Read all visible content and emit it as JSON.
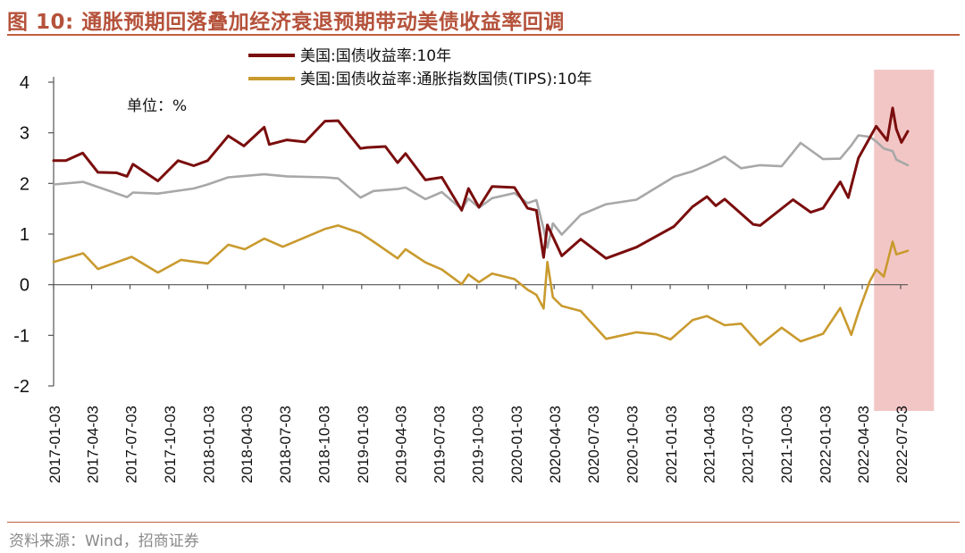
{
  "header": {
    "title": "图 10:  通胀预期回落叠加经济衰退预期带动美债收益率回调"
  },
  "footer": {
    "source": "资料来源：Wind，招商证券"
  },
  "chart_data": {
    "type": "line",
    "unit_label": "单位：%",
    "ylim": [
      -2,
      4
    ],
    "yticks": [
      4,
      3,
      2,
      1,
      0,
      -1,
      -2
    ],
    "xlim": [
      "2017-01-03",
      "2022-07-20"
    ],
    "xticks": [
      "2017-01-03",
      "2017-04-03",
      "2017-07-03",
      "2017-10-03",
      "2018-01-03",
      "2018-04-03",
      "2018-07-03",
      "2018-10-03",
      "2019-01-03",
      "2019-04-03",
      "2019-07-03",
      "2019-10-03",
      "2020-01-03",
      "2020-04-03",
      "2020-07-03",
      "2020-10-03",
      "2021-01-03",
      "2021-04-03",
      "2021-07-03",
      "2021-10-03",
      "2022-01-03",
      "2022-04-03",
      "2022-07-03"
    ],
    "grid": false,
    "legend_position": "top-center",
    "highlight_region": {
      "x_start": "2022-05-01",
      "x_end": "2022-09-20",
      "color": "#f3c6c6"
    },
    "series": [
      {
        "name": "美国:国债收益率:10年",
        "color": "#7a0d0d",
        "points": [
          [
            "2017-01-03",
            2.45
          ],
          [
            "2017-02-01",
            2.45
          ],
          [
            "2017-03-13",
            2.6
          ],
          [
            "2017-04-18",
            2.22
          ],
          [
            "2017-06-01",
            2.21
          ],
          [
            "2017-06-26",
            2.14
          ],
          [
            "2017-07-10",
            2.38
          ],
          [
            "2017-09-07",
            2.05
          ],
          [
            "2017-10-25",
            2.45
          ],
          [
            "2017-12-01",
            2.35
          ],
          [
            "2018-01-03",
            2.45
          ],
          [
            "2018-02-21",
            2.94
          ],
          [
            "2018-03-30",
            2.74
          ],
          [
            "2018-05-17",
            3.11
          ],
          [
            "2018-05-29",
            2.77
          ],
          [
            "2018-07-10",
            2.86
          ],
          [
            "2018-08-22",
            2.82
          ],
          [
            "2018-10-08",
            3.23
          ],
          [
            "2018-11-08",
            3.24
          ],
          [
            "2018-12-31",
            2.69
          ],
          [
            "2019-01-15",
            2.71
          ],
          [
            "2019-02-28",
            2.73
          ],
          [
            "2019-03-29",
            2.41
          ],
          [
            "2019-04-17",
            2.59
          ],
          [
            "2019-06-03",
            2.07
          ],
          [
            "2019-07-12",
            2.12
          ],
          [
            "2019-08-28",
            1.47
          ],
          [
            "2019-09-13",
            1.9
          ],
          [
            "2019-10-08",
            1.53
          ],
          [
            "2019-11-08",
            1.94
          ],
          [
            "2019-12-31",
            1.92
          ],
          [
            "2020-01-31",
            1.51
          ],
          [
            "2020-02-21",
            1.47
          ],
          [
            "2020-03-09",
            0.54
          ],
          [
            "2020-03-18",
            1.18
          ],
          [
            "2020-04-21",
            0.57
          ],
          [
            "2020-06-05",
            0.9
          ],
          [
            "2020-08-04",
            0.52
          ],
          [
            "2020-10-15",
            0.74
          ],
          [
            "2021-01-12",
            1.15
          ],
          [
            "2021-02-25",
            1.54
          ],
          [
            "2021-03-31",
            1.74
          ],
          [
            "2021-04-21",
            1.56
          ],
          [
            "2021-05-12",
            1.69
          ],
          [
            "2021-07-19",
            1.19
          ],
          [
            "2021-08-04",
            1.17
          ],
          [
            "2021-10-21",
            1.68
          ],
          [
            "2021-12-02",
            1.43
          ],
          [
            "2021-12-31",
            1.51
          ],
          [
            "2022-02-10",
            2.03
          ],
          [
            "2022-03-01",
            1.72
          ],
          [
            "2022-03-25",
            2.5
          ],
          [
            "2022-05-06",
            3.13
          ],
          [
            "2022-06-01",
            2.85
          ],
          [
            "2022-06-14",
            3.49
          ],
          [
            "2022-06-23",
            3.07
          ],
          [
            "2022-07-05",
            2.81
          ],
          [
            "2022-07-20",
            3.03
          ]
        ]
      },
      {
        "name": "美国:国债收益率:通胀指数国债(TIPS):10年",
        "color": "#c99a2e",
        "points": [
          [
            "2017-01-03",
            0.45
          ],
          [
            "2017-03-14",
            0.62
          ],
          [
            "2017-04-18",
            0.31
          ],
          [
            "2017-07-07",
            0.55
          ],
          [
            "2017-09-07",
            0.24
          ],
          [
            "2017-11-01",
            0.49
          ],
          [
            "2018-01-03",
            0.42
          ],
          [
            "2018-02-21",
            0.79
          ],
          [
            "2018-04-01",
            0.7
          ],
          [
            "2018-05-17",
            0.91
          ],
          [
            "2018-06-30",
            0.75
          ],
          [
            "2018-10-08",
            1.1
          ],
          [
            "2018-11-08",
            1.17
          ],
          [
            "2018-12-31",
            1.02
          ],
          [
            "2019-01-31",
            0.85
          ],
          [
            "2019-03-29",
            0.52
          ],
          [
            "2019-04-17",
            0.7
          ],
          [
            "2019-06-03",
            0.44
          ],
          [
            "2019-07-12",
            0.3
          ],
          [
            "2019-08-28",
            0.01
          ],
          [
            "2019-09-13",
            0.2
          ],
          [
            "2019-10-08",
            0.05
          ],
          [
            "2019-11-08",
            0.22
          ],
          [
            "2019-12-31",
            0.11
          ],
          [
            "2020-01-31",
            -0.1
          ],
          [
            "2020-02-21",
            -0.2
          ],
          [
            "2020-03-09",
            -0.47
          ],
          [
            "2020-03-18",
            0.45
          ],
          [
            "2020-03-31",
            -0.25
          ],
          [
            "2020-04-21",
            -0.42
          ],
          [
            "2020-06-05",
            -0.52
          ],
          [
            "2020-08-04",
            -1.07
          ],
          [
            "2020-10-15",
            -0.94
          ],
          [
            "2020-12-01",
            -0.98
          ],
          [
            "2021-01-04",
            -1.08
          ],
          [
            "2021-02-25",
            -0.7
          ],
          [
            "2021-03-31",
            -0.62
          ],
          [
            "2021-05-12",
            -0.8
          ],
          [
            "2021-06-20",
            -0.77
          ],
          [
            "2021-08-04",
            -1.19
          ],
          [
            "2021-09-24",
            -0.85
          ],
          [
            "2021-11-08",
            -1.12
          ],
          [
            "2021-12-31",
            -0.97
          ],
          [
            "2022-02-10",
            -0.46
          ],
          [
            "2022-03-08",
            -0.99
          ],
          [
            "2022-03-25",
            -0.55
          ],
          [
            "2022-04-21",
            0.07
          ],
          [
            "2022-05-06",
            0.3
          ],
          [
            "2022-05-24",
            0.16
          ],
          [
            "2022-06-14",
            0.85
          ],
          [
            "2022-06-23",
            0.6
          ],
          [
            "2022-07-20",
            0.67
          ]
        ]
      },
      {
        "name": "",
        "color": "#a8a8a8",
        "points": [
          [
            "2017-01-03",
            1.98
          ],
          [
            "2017-03-14",
            2.03
          ],
          [
            "2017-06-26",
            1.73
          ],
          [
            "2017-07-10",
            1.82
          ],
          [
            "2017-09-07",
            1.8
          ],
          [
            "2017-12-01",
            1.9
          ],
          [
            "2018-01-03",
            1.98
          ],
          [
            "2018-02-21",
            2.12
          ],
          [
            "2018-05-17",
            2.18
          ],
          [
            "2018-07-10",
            2.14
          ],
          [
            "2018-10-08",
            2.12
          ],
          [
            "2018-11-08",
            2.1
          ],
          [
            "2018-12-31",
            1.72
          ],
          [
            "2019-01-31",
            1.85
          ],
          [
            "2019-03-29",
            1.89
          ],
          [
            "2019-04-17",
            1.92
          ],
          [
            "2019-06-03",
            1.69
          ],
          [
            "2019-07-12",
            1.83
          ],
          [
            "2019-08-28",
            1.49
          ],
          [
            "2019-09-13",
            1.7
          ],
          [
            "2019-10-08",
            1.52
          ],
          [
            "2019-11-08",
            1.71
          ],
          [
            "2019-12-31",
            1.81
          ],
          [
            "2020-01-31",
            1.61
          ],
          [
            "2020-02-21",
            1.67
          ],
          [
            "2020-03-09",
            1.1
          ],
          [
            "2020-03-18",
            0.73
          ],
          [
            "2020-03-31",
            1.21
          ],
          [
            "2020-04-21",
            0.99
          ],
          [
            "2020-06-05",
            1.38
          ],
          [
            "2020-08-04",
            1.59
          ],
          [
            "2020-10-15",
            1.68
          ],
          [
            "2021-01-12",
            2.13
          ],
          [
            "2021-02-25",
            2.24
          ],
          [
            "2021-03-31",
            2.36
          ],
          [
            "2021-05-12",
            2.53
          ],
          [
            "2021-06-20",
            2.3
          ],
          [
            "2021-08-04",
            2.36
          ],
          [
            "2021-09-24",
            2.34
          ],
          [
            "2021-11-08",
            2.8
          ],
          [
            "2021-12-31",
            2.48
          ],
          [
            "2022-02-10",
            2.49
          ],
          [
            "2022-03-08",
            2.75
          ],
          [
            "2022-03-25",
            2.95
          ],
          [
            "2022-04-21",
            2.92
          ],
          [
            "2022-05-06",
            2.83
          ],
          [
            "2022-05-24",
            2.69
          ],
          [
            "2022-06-14",
            2.64
          ],
          [
            "2022-06-23",
            2.47
          ],
          [
            "2022-07-20",
            2.36
          ]
        ]
      }
    ]
  }
}
